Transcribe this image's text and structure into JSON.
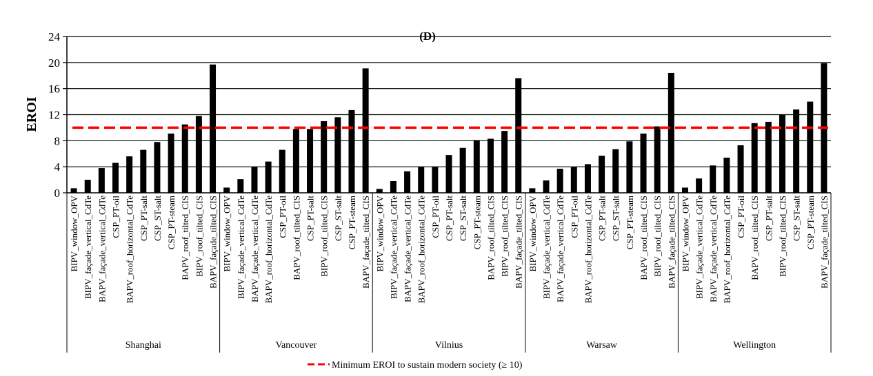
{
  "chart_data": {
    "type": "bar",
    "title": "(D)",
    "xlabel": "",
    "ylabel": "EROI",
    "ylim": [
      0,
      24
    ],
    "yticks": [
      0,
      4,
      8,
      12,
      16,
      20,
      24
    ],
    "grid": true,
    "bar_color": "#000000",
    "threshold": {
      "value": 10,
      "label": "Minimum EROI to sustain modern society (≥ 10)",
      "color": "#ff0000",
      "style": "dashed"
    },
    "legend_placement": "bottom",
    "groups": [
      {
        "name": "Shanghai",
        "categories": [
          "BIPV_window_OPV",
          "BIPV_façade_vertical_CdTe",
          "BAPV_façade_vertical_CdTe",
          "CSP_PT-oil",
          "BAPV_roof_horizontal_CdTe",
          "CSP_PT-salt",
          "CSP_ST-salt",
          "CSP_PT-steam",
          "BAPV_roof_tilted_CIS",
          "BIPV_roof_tilted_CIS",
          "BAPV_façade_tilted_CIS"
        ],
        "values": [
          0.7,
          2.0,
          3.8,
          4.6,
          5.6,
          6.6,
          7.8,
          9.1,
          10.5,
          11.8,
          19.7
        ]
      },
      {
        "name": "Vancouver",
        "categories": [
          "BIPV_window_OPV",
          "BIPV_façade_vertical_CdTe",
          "BAPV_façade_vertical_CdTe",
          "BAPV_roof_horizontal_CdTe",
          "CSP_PT-oil",
          "BAPV_roof_tilted_CIS",
          "CSP_PT-salt",
          "BIPV_roof_tilted_CIS",
          "CSP_ST-salt",
          "CSP_PT-steam",
          "BAPV_façade_tilted_CIS"
        ],
        "values": [
          0.8,
          2.1,
          4.0,
          4.8,
          6.6,
          9.8,
          9.8,
          11.0,
          11.6,
          12.7,
          19.1
        ]
      },
      {
        "name": "Vilnius",
        "categories": [
          "BIPV_window_OPV",
          "BIPV_façade_vertical_CdTe",
          "BAPV_façade_vertical_CdTe",
          "BAPV_roof_horizontal_CdTe",
          "CSP_PT-oil",
          "CSP_PT-salt",
          "CSP_ST-salt",
          "CSP_PT-steam",
          "BAPV_roof_tilted_CIS",
          "BIPV_roof_tilted_CIS",
          "BAPV_façade_tilted_CIS"
        ],
        "values": [
          0.6,
          1.8,
          3.3,
          4.0,
          4.0,
          5.8,
          6.9,
          8.1,
          8.3,
          9.5,
          17.6
        ]
      },
      {
        "name": "Warsaw",
        "categories": [
          "BIPV_window_OPV",
          "BIPV_façade_vertical_CdTe",
          "BAPV_façade_vertical_CdTe",
          "CSP_PT-oil",
          "BAPV_roof_horizontal_CdTe",
          "CSP_PT-salt",
          "CSP_ST-salt",
          "CSP_PT-steam",
          "BAPV_roof_tilted_CIS",
          "BIPV_roof_tilted_CIS",
          "BAPV_façade_tilted_CIS"
        ],
        "values": [
          0.7,
          1.9,
          3.7,
          4.0,
          4.4,
          5.7,
          6.7,
          7.9,
          9.1,
          10.2,
          18.4
        ]
      },
      {
        "name": "Wellington",
        "categories": [
          "BIPV_window_OPV",
          "BIPV_façade_vertical_CdTe",
          "BAPV_façade_vertical_CdTe",
          "BAPV_roof_horizontal_CdTe",
          "CSP_PT-oil",
          "BAPV_roof_tilted_CIS",
          "CSP_PT-salt",
          "BIPV_roof_tilted_CIS",
          "CSP_ST-salt",
          "CSP_PT-steam",
          "BAPV_façade_tilted_CIS"
        ],
        "values": [
          0.8,
          2.2,
          4.2,
          5.4,
          7.3,
          10.7,
          10.9,
          12.0,
          12.8,
          14.0,
          19.9
        ]
      }
    ]
  }
}
